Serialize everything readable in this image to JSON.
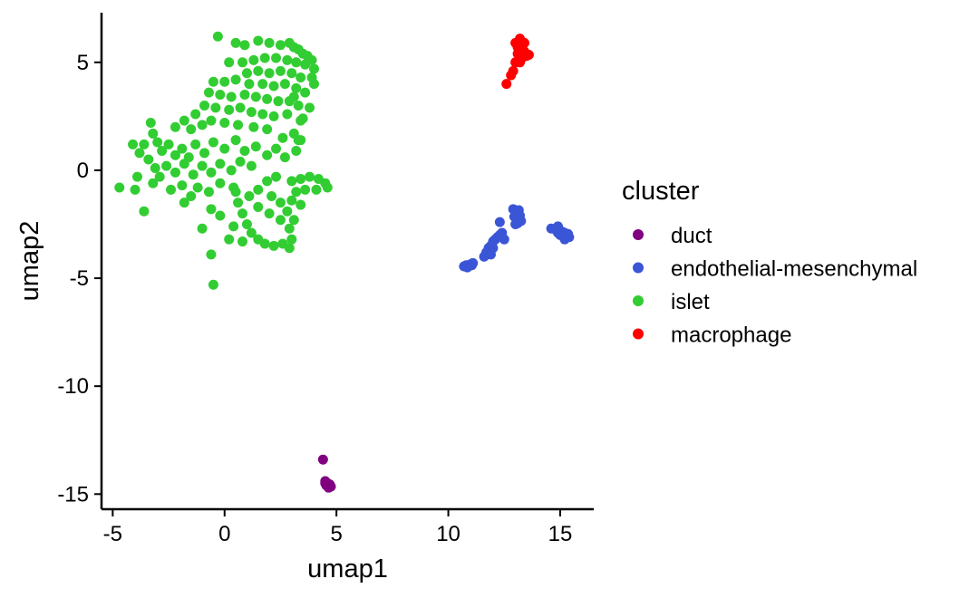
{
  "chart_data": {
    "type": "scatter",
    "xlabel": "umap1",
    "ylabel": "umap2",
    "xlim": [
      -5.5,
      16.5
    ],
    "ylim": [
      -15.7,
      7.3
    ],
    "xticks": [
      -5,
      0,
      5,
      10,
      15
    ],
    "yticks": [
      -15,
      -10,
      -5,
      0,
      5
    ],
    "grid": false,
    "legend": {
      "title": "cluster",
      "position": "right"
    },
    "series": [
      {
        "name": "duct",
        "color": "#800080",
        "points": [
          [
            4.4,
            -13.4
          ],
          [
            4.5,
            -14.4
          ],
          [
            4.55,
            -14.6
          ],
          [
            4.6,
            -14.5
          ],
          [
            4.65,
            -14.7
          ],
          [
            4.7,
            -14.55
          ],
          [
            4.75,
            -14.65
          ],
          [
            4.5,
            -14.5
          ]
        ]
      },
      {
        "name": "endothelial-mesenchymal",
        "color": "#3a55d6",
        "points": [
          [
            10.7,
            -4.45
          ],
          [
            10.8,
            -4.4
          ],
          [
            10.9,
            -4.45
          ],
          [
            11.0,
            -4.35
          ],
          [
            11.1,
            -4.3
          ],
          [
            10.85,
            -4.5
          ],
          [
            11.05,
            -4.4
          ],
          [
            11.6,
            -4.0
          ],
          [
            11.7,
            -3.8
          ],
          [
            11.8,
            -3.6
          ],
          [
            11.9,
            -3.5
          ],
          [
            12.0,
            -3.3
          ],
          [
            12.1,
            -3.2
          ],
          [
            12.2,
            -3.1
          ],
          [
            12.3,
            -3.0
          ],
          [
            12.4,
            -2.9
          ],
          [
            12.5,
            -3.2
          ],
          [
            12.0,
            -3.6
          ],
          [
            11.9,
            -3.9
          ],
          [
            12.3,
            -2.4
          ],
          [
            12.9,
            -1.8
          ],
          [
            13.0,
            -1.9
          ],
          [
            13.1,
            -2.0
          ],
          [
            13.2,
            -2.1
          ],
          [
            13.05,
            -2.3
          ],
          [
            13.15,
            -1.85
          ],
          [
            12.95,
            -2.15
          ],
          [
            13.25,
            -2.35
          ],
          [
            13.1,
            -2.45
          ],
          [
            13.0,
            -2.5
          ],
          [
            14.6,
            -2.7
          ],
          [
            14.8,
            -2.75
          ],
          [
            14.9,
            -2.6
          ],
          [
            15.0,
            -2.8
          ],
          [
            15.1,
            -2.85
          ],
          [
            15.2,
            -2.9
          ],
          [
            15.3,
            -3.0
          ],
          [
            15.4,
            -3.1
          ],
          [
            15.2,
            -3.2
          ],
          [
            15.0,
            -3.0
          ],
          [
            14.9,
            -2.9
          ],
          [
            15.35,
            -2.95
          ]
        ]
      },
      {
        "name": "islet",
        "color": "#32cd32",
        "points": [
          [
            -0.3,
            6.2
          ],
          [
            0.5,
            5.9
          ],
          [
            0.9,
            5.8
          ],
          [
            1.5,
            6.0
          ],
          [
            2.0,
            5.9
          ],
          [
            2.5,
            5.8
          ],
          [
            2.9,
            5.9
          ],
          [
            3.1,
            5.7
          ],
          [
            3.3,
            5.6
          ],
          [
            3.5,
            5.4
          ],
          [
            3.7,
            5.3
          ],
          [
            3.9,
            5.1
          ],
          [
            4.0,
            4.7
          ],
          [
            3.9,
            4.3
          ],
          [
            4.0,
            4.0
          ],
          [
            0.2,
            5.0
          ],
          [
            0.8,
            5.0
          ],
          [
            1.3,
            5.1
          ],
          [
            1.8,
            5.2
          ],
          [
            2.3,
            5.2
          ],
          [
            2.8,
            5.1
          ],
          [
            3.2,
            5.0
          ],
          [
            3.6,
            4.9
          ],
          [
            1.0,
            4.5
          ],
          [
            1.5,
            4.6
          ],
          [
            2.0,
            4.5
          ],
          [
            2.5,
            4.6
          ],
          [
            3.0,
            4.5
          ],
          [
            3.4,
            4.3
          ],
          [
            -0.5,
            4.1
          ],
          [
            0.0,
            4.1
          ],
          [
            0.5,
            4.2
          ],
          [
            1.1,
            4.0
          ],
          [
            1.7,
            4.0
          ],
          [
            2.2,
            3.9
          ],
          [
            2.7,
            4.0
          ],
          [
            3.2,
            3.8
          ],
          [
            3.6,
            3.6
          ],
          [
            -0.7,
            3.6
          ],
          [
            -0.2,
            3.5
          ],
          [
            0.3,
            3.4
          ],
          [
            0.9,
            3.5
          ],
          [
            1.4,
            3.4
          ],
          [
            1.9,
            3.3
          ],
          [
            2.4,
            3.2
          ],
          [
            2.9,
            3.2
          ],
          [
            -0.9,
            3.0
          ],
          [
            -0.4,
            2.9
          ],
          [
            0.2,
            2.8
          ],
          [
            0.7,
            2.9
          ],
          [
            1.2,
            2.7
          ],
          [
            1.7,
            2.6
          ],
          [
            2.2,
            2.5
          ],
          [
            2.8,
            2.6
          ],
          [
            3.4,
            2.3
          ],
          [
            3.8,
            2.9
          ],
          [
            -1.3,
            2.6
          ],
          [
            -1.8,
            2.3
          ],
          [
            -2.2,
            2.0
          ],
          [
            -1.5,
            1.9
          ],
          [
            -1.0,
            2.1
          ],
          [
            -0.6,
            2.3
          ],
          [
            0.0,
            2.2
          ],
          [
            0.6,
            2.1
          ],
          [
            1.3,
            2.0
          ],
          [
            1.9,
            1.9
          ],
          [
            2.6,
            1.5
          ],
          [
            3.1,
            1.7
          ],
          [
            3.4,
            1.4
          ],
          [
            -3.3,
            2.2
          ],
          [
            -3.2,
            1.7
          ],
          [
            -3.0,
            1.3
          ],
          [
            -2.8,
            0.9
          ],
          [
            -3.4,
            0.5
          ],
          [
            -3.6,
            1.2
          ],
          [
            -3.1,
            0.1
          ],
          [
            -2.9,
            -0.3
          ],
          [
            -3.2,
            -0.6
          ],
          [
            -4.1,
            1.2
          ],
          [
            -3.8,
            0.8
          ],
          [
            -3.9,
            -0.3
          ],
          [
            -4.7,
            -0.8
          ],
          [
            -4.0,
            -0.9
          ],
          [
            -3.6,
            -1.9
          ],
          [
            -2.5,
            1.2
          ],
          [
            -2.2,
            0.7
          ],
          [
            -1.9,
            1.0
          ],
          [
            -1.6,
            0.6
          ],
          [
            -1.3,
            1.2
          ],
          [
            -0.9,
            0.8
          ],
          [
            -0.5,
            1.3
          ],
          [
            0.0,
            1.0
          ],
          [
            0.5,
            1.4
          ],
          [
            0.9,
            0.9
          ],
          [
            1.4,
            1.1
          ],
          [
            1.9,
            0.7
          ],
          [
            2.3,
            1.0
          ],
          [
            2.7,
            0.6
          ],
          [
            3.2,
            0.9
          ],
          [
            -2.6,
            0.2
          ],
          [
            -2.2,
            -0.1
          ],
          [
            -1.8,
            0.3
          ],
          [
            -1.4,
            -0.2
          ],
          [
            -1.0,
            0.2
          ],
          [
            -0.6,
            -0.1
          ],
          [
            -0.2,
            0.3
          ],
          [
            0.3,
            0.0
          ],
          [
            0.7,
            0.4
          ],
          [
            1.2,
            0.2
          ],
          [
            -2.4,
            -0.9
          ],
          [
            -1.9,
            -0.7
          ],
          [
            -1.5,
            -1.2
          ],
          [
            -1.2,
            -0.8
          ],
          [
            -0.7,
            -1.0
          ],
          [
            -0.2,
            -0.6
          ],
          [
            0.4,
            -0.8
          ],
          [
            -1.8,
            -1.5
          ],
          [
            -0.6,
            -1.8
          ],
          [
            -1.0,
            -2.7
          ],
          [
            -0.2,
            -2.1
          ],
          [
            0.5,
            -1.0
          ],
          [
            0.6,
            -1.5
          ],
          [
            0.8,
            -2.0
          ],
          [
            1.0,
            -2.5
          ],
          [
            1.2,
            -2.9
          ],
          [
            1.5,
            -3.2
          ],
          [
            1.8,
            -3.4
          ],
          [
            2.2,
            -3.5
          ],
          [
            2.6,
            -3.4
          ],
          [
            3.0,
            -3.2
          ],
          [
            2.9,
            -2.7
          ],
          [
            2.5,
            -2.3
          ],
          [
            2.0,
            -2.0
          ],
          [
            1.5,
            -1.7
          ],
          [
            1.1,
            -1.2
          ],
          [
            1.5,
            -0.9
          ],
          [
            1.9,
            -0.5
          ],
          [
            2.3,
            -0.3
          ],
          [
            2.1,
            -1.2
          ],
          [
            2.5,
            -1.5
          ],
          [
            2.8,
            -1.9
          ],
          [
            3.1,
            -2.3
          ],
          [
            0.4,
            -2.6
          ],
          [
            0.2,
            -3.2
          ],
          [
            0.8,
            -3.3
          ],
          [
            2.9,
            -3.6
          ],
          [
            3.0,
            -0.5
          ],
          [
            3.4,
            -0.4
          ],
          [
            3.8,
            -0.3
          ],
          [
            4.2,
            -0.4
          ],
          [
            4.5,
            -0.6
          ],
          [
            4.1,
            -0.9
          ],
          [
            3.6,
            -0.9
          ],
          [
            3.2,
            -1.0
          ],
          [
            3.4,
            -1.6
          ],
          [
            3.0,
            -1.4
          ],
          [
            4.6,
            -0.8
          ],
          [
            3.3,
            3.0
          ],
          [
            3.5,
            2.4
          ],
          [
            3.3,
            1.4
          ],
          [
            3.1,
            3.4
          ],
          [
            -0.6,
            -3.9
          ],
          [
            -0.5,
            -5.3
          ]
        ]
      },
      {
        "name": "macrophage",
        "color": "#ff0000",
        "points": [
          [
            12.6,
            4.0
          ],
          [
            12.8,
            4.4
          ],
          [
            12.9,
            4.6
          ],
          [
            13.0,
            5.0
          ],
          [
            13.1,
            5.4
          ],
          [
            13.2,
            5.6
          ],
          [
            13.3,
            5.8
          ],
          [
            13.2,
            6.1
          ],
          [
            13.4,
            5.5
          ],
          [
            13.5,
            5.3
          ],
          [
            13.6,
            5.35
          ],
          [
            13.1,
            5.7
          ],
          [
            13.3,
            5.2
          ],
          [
            13.0,
            5.9
          ],
          [
            13.4,
            5.9
          ],
          [
            13.2,
            5.0
          ]
        ]
      }
    ]
  }
}
